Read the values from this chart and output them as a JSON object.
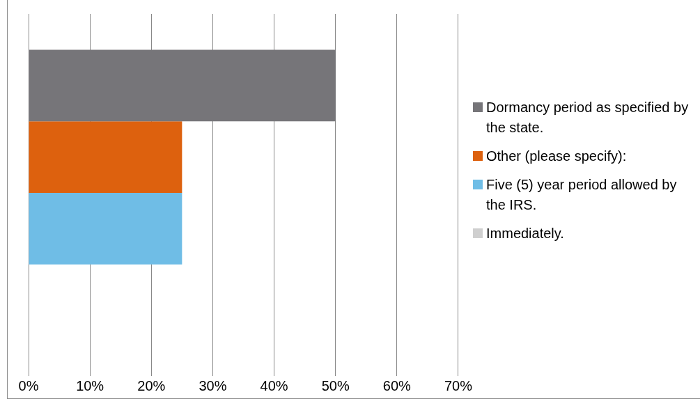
{
  "chart_data": {
    "type": "bar",
    "orientation": "horizontal",
    "categories": [
      null
    ],
    "series": [
      {
        "name": "Dormancy period as specified by the state.",
        "color": "#767579",
        "values": [
          50
        ]
      },
      {
        "name": "Other (please specify):",
        "color": "#dd610e",
        "values": [
          25
        ]
      },
      {
        "name": "Five (5) year period allowed by the IRS.",
        "color": "#6fbde6",
        "values": [
          25
        ]
      },
      {
        "name": "Immediately.",
        "color": "#cfcfcf",
        "values": [
          0
        ]
      }
    ],
    "xlim": [
      0,
      70
    ],
    "xticks": [
      {
        "value": 0,
        "label": "0%"
      },
      {
        "value": 10,
        "label": "10%"
      },
      {
        "value": 20,
        "label": "20%"
      },
      {
        "value": 30,
        "label": "30%"
      },
      {
        "value": 40,
        "label": "40%"
      },
      {
        "value": 50,
        "label": "50%"
      },
      {
        "value": 60,
        "label": "60%"
      },
      {
        "value": 70,
        "label": "70%"
      }
    ],
    "grid": "x",
    "legend": "right",
    "tick_labels": "x"
  }
}
